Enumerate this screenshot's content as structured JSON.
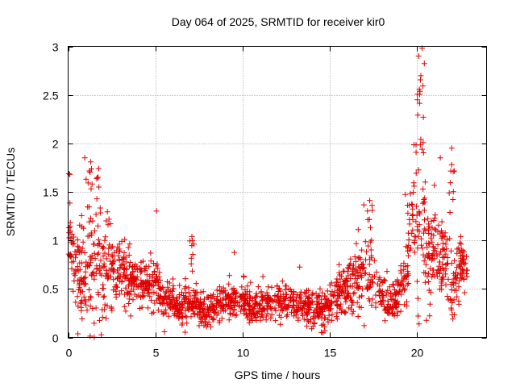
{
  "chart_data": {
    "type": "scatter",
    "title": "Day 064 of 2025, SRMTID for receiver kir0",
    "xlabel": "GPS time / hours",
    "ylabel": "SRMTID / TECUs",
    "xlim": [
      0,
      24
    ],
    "ylim": [
      0,
      3
    ],
    "xticks": [
      0,
      5,
      10,
      15,
      20
    ],
    "xtick_labels": [
      "0",
      "5",
      "10",
      "15",
      "20"
    ],
    "yticks": [
      0,
      0.5,
      1,
      1.5,
      2,
      2.5,
      3
    ],
    "ytick_labels": [
      "0",
      "0.5",
      "1",
      "1.5",
      "2",
      "2.5",
      "3"
    ],
    "grid": true,
    "marker": "+",
    "color": "#e00000",
    "series": [
      {
        "name": "SRMTID",
        "envelope_hours": [
          0,
          0.5,
          1,
          1.5,
          2,
          2.5,
          3,
          3.5,
          4,
          4.5,
          5,
          5.5,
          6,
          6.5,
          7,
          7.5,
          8,
          8.5,
          9,
          9.5,
          10,
          10.5,
          11,
          11.5,
          12,
          12.5,
          13,
          13.5,
          14,
          14.5,
          15,
          15.5,
          16,
          16.5,
          17,
          17.5,
          18,
          18.5,
          19,
          19.5,
          20,
          20.5,
          21,
          21.5,
          22,
          22.5,
          22.9
        ],
        "envelope_center": [
          1.1,
          0.6,
          0.5,
          0.65,
          0.7,
          0.7,
          0.65,
          0.6,
          0.55,
          0.5,
          0.55,
          0.4,
          0.35,
          0.3,
          0.35,
          0.3,
          0.25,
          0.3,
          0.35,
          0.35,
          0.35,
          0.3,
          0.3,
          0.35,
          0.4,
          0.35,
          0.35,
          0.3,
          0.3,
          0.3,
          0.3,
          0.45,
          0.5,
          0.6,
          0.7,
          0.55,
          0.4,
          0.35,
          0.45,
          0.85,
          1.1,
          0.95,
          0.9,
          0.8,
          0.5,
          0.7,
          0.7
        ],
        "envelope_spread": [
          0.35,
          0.4,
          0.45,
          0.45,
          0.45,
          0.35,
          0.25,
          0.22,
          0.2,
          0.2,
          0.22,
          0.18,
          0.15,
          0.15,
          0.18,
          0.15,
          0.15,
          0.15,
          0.15,
          0.15,
          0.15,
          0.15,
          0.15,
          0.15,
          0.15,
          0.15,
          0.15,
          0.15,
          0.15,
          0.15,
          0.15,
          0.2,
          0.25,
          0.3,
          0.35,
          0.25,
          0.15,
          0.15,
          0.2,
          0.35,
          0.7,
          0.55,
          0.35,
          0.3,
          0.35,
          0.25,
          0.25
        ],
        "peaks": [
          {
            "x": 1.3,
            "y": 1.81
          },
          {
            "x": 1.75,
            "y": 1.74
          },
          {
            "x": 7.1,
            "y": 1.04
          },
          {
            "x": 17.3,
            "y": 1.41
          },
          {
            "x": 20.1,
            "y": 2.9
          },
          {
            "x": 20.3,
            "y": 2.98
          },
          {
            "x": 22.0,
            "y": 1.95
          }
        ],
        "samples": 1800
      }
    ]
  }
}
